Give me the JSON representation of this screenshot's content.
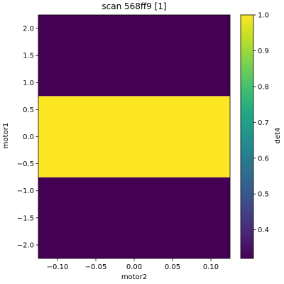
{
  "chart_data": {
    "type": "heatmap",
    "title": "scan 568ff9 [1]",
    "xlabel": "motor2",
    "ylabel": "motor1",
    "colorbar_label": "det4",
    "colormap": "viridis",
    "xlim": [
      -0.125,
      0.125
    ],
    "ylim": [
      -2.25,
      2.25
    ],
    "x_ticks": [
      -0.1,
      -0.05,
      0.0,
      0.05,
      0.1
    ],
    "x_tick_labels": [
      "−0.10",
      "−0.05",
      "0.00",
      "0.05",
      "0.10"
    ],
    "y_ticks": [
      -2.0,
      -1.5,
      -1.0,
      -0.5,
      0.0,
      0.5,
      1.0,
      1.5,
      2.0
    ],
    "y_tick_labels": [
      "−2.0",
      "−1.5",
      "−1.0",
      "−0.5",
      "0.0",
      "0.5",
      "1.0",
      "1.5",
      "2.0"
    ],
    "color_range": [
      0.32,
      1.0
    ],
    "colorbar_ticks": [
      0.4,
      0.5,
      0.6,
      0.7,
      0.8,
      0.9,
      1.0
    ],
    "colorbar_tick_labels": [
      "0.4",
      "0.5",
      "0.6",
      "0.7",
      "0.8",
      "0.9",
      "1.0"
    ],
    "rows": [
      {
        "y_range": [
          -2.25,
          -0.75
        ],
        "value": 0.32
      },
      {
        "y_range": [
          -0.75,
          0.75
        ],
        "value": 1.0
      },
      {
        "y_range": [
          0.75,
          2.25
        ],
        "value": 0.32
      }
    ]
  }
}
